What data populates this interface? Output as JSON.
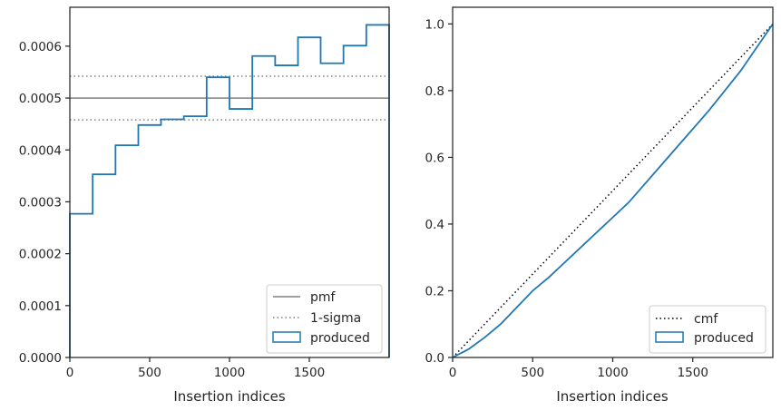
{
  "chart_data": [
    {
      "type": "line",
      "xlabel": "Insertion indices",
      "ylabel": "",
      "xlim": [
        0,
        2000
      ],
      "ylim": [
        0,
        0.000675
      ],
      "xticks": [
        0,
        500,
        1000,
        1500
      ],
      "xtick_labels": [
        "0",
        "500",
        "1000",
        "1500"
      ],
      "yticks": [
        0,
        0.0001,
        0.0002,
        0.0003,
        0.0004,
        0.0005,
        0.0006
      ],
      "ytick_labels": [
        "0.0000",
        "0.0001",
        "0.0002",
        "0.0003",
        "0.0004",
        "0.0005",
        "0.0006"
      ],
      "grid": false,
      "legend_position": "lower-right",
      "reference_lines": [
        {
          "name": "pmf",
          "y": 0.0005,
          "style": "solid",
          "color": "#808080"
        },
        {
          "name": "1-sigma",
          "y": 0.000458,
          "style": "dotted",
          "color": "#808080"
        },
        {
          "name": "1-sigma",
          "y": 0.000542,
          "style": "dotted",
          "color": "#808080"
        }
      ],
      "series": [
        {
          "name": "produced",
          "style": "step",
          "color": "#1f77b4",
          "bin_edges": [
            0,
            143,
            286,
            429,
            571,
            714,
            857,
            1000,
            1143,
            1286,
            1429,
            1571,
            1714,
            1857,
            2000
          ],
          "values": [
            0.000277,
            0.000353,
            0.000409,
            0.000448,
            0.000459,
            0.000465,
            0.00054,
            0.000479,
            0.000581,
            0.000563,
            0.000617,
            0.000567,
            0.000601,
            0.000641
          ]
        }
      ],
      "legend": [
        {
          "label": "pmf",
          "marker": "solid-line"
        },
        {
          "label": "1-sigma",
          "marker": "dotted-line"
        },
        {
          "label": "produced",
          "marker": "box"
        }
      ]
    },
    {
      "type": "line",
      "xlabel": "Insertion indices",
      "ylabel": "",
      "xlim": [
        0,
        2000
      ],
      "ylim": [
        0,
        1.05
      ],
      "xticks": [
        0,
        500,
        1000,
        1500
      ],
      "xtick_labels": [
        "0",
        "500",
        "1000",
        "1500"
      ],
      "yticks": [
        0,
        0.2,
        0.4,
        0.6,
        0.8,
        1.0
      ],
      "ytick_labels": [
        "0.0",
        "0.2",
        "0.4",
        "0.6",
        "0.8",
        "1.0"
      ],
      "grid": false,
      "legend_position": "lower-right",
      "series": [
        {
          "name": "cmf",
          "style": "dotted",
          "color": "#000000",
          "x": [
            0,
            2000
          ],
          "values": [
            0,
            1.0
          ]
        },
        {
          "name": "produced",
          "style": "line",
          "color": "#1f77b4",
          "x": [
            0,
            100,
            200,
            300,
            400,
            500,
            600,
            700,
            800,
            900,
            1000,
            1100,
            1200,
            1300,
            1400,
            1500,
            1600,
            1700,
            1800,
            1900,
            2000
          ],
          "values": [
            0,
            0.025,
            0.06,
            0.1,
            0.15,
            0.2,
            0.24,
            0.285,
            0.33,
            0.375,
            0.42,
            0.465,
            0.52,
            0.575,
            0.63,
            0.685,
            0.74,
            0.8,
            0.86,
            0.93,
            1.0
          ]
        }
      ],
      "legend": [
        {
          "label": "cmf",
          "marker": "dotted-line"
        },
        {
          "label": "produced",
          "marker": "box"
        }
      ]
    }
  ]
}
